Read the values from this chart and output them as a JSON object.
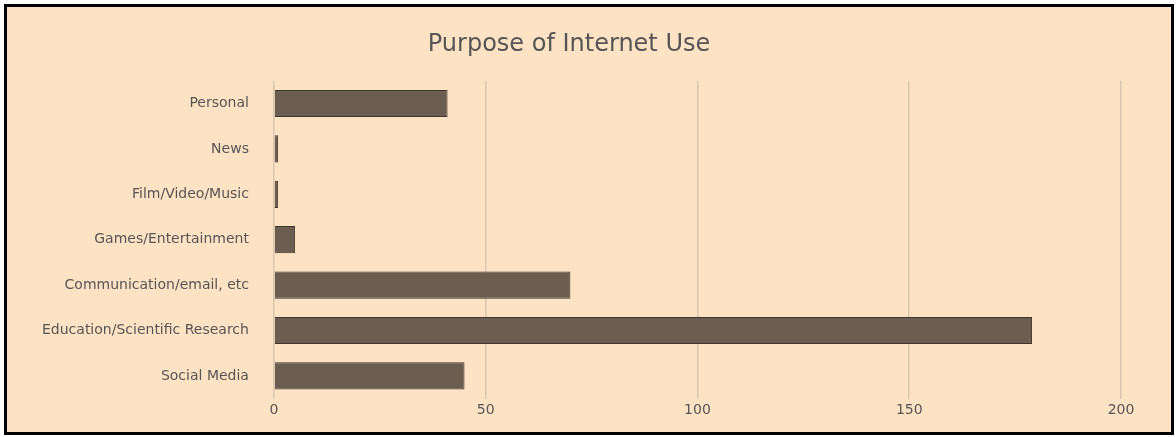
{
  "chart_data": {
    "type": "bar",
    "orientation": "horizontal",
    "title": "Purpose of Internet Use",
    "categories": [
      "Personal",
      "News",
      "Film/Video/Music",
      "Games/Entertainment",
      "Communication/email, etc",
      "Education/Scientific Research",
      "Social Media"
    ],
    "values": [
      41,
      1,
      1,
      5,
      70,
      179,
      45
    ],
    "color": "#6b5d4f",
    "xlim": [
      0,
      200
    ],
    "xticks": [
      0,
      50,
      100,
      150,
      200
    ],
    "grid": "x"
  }
}
